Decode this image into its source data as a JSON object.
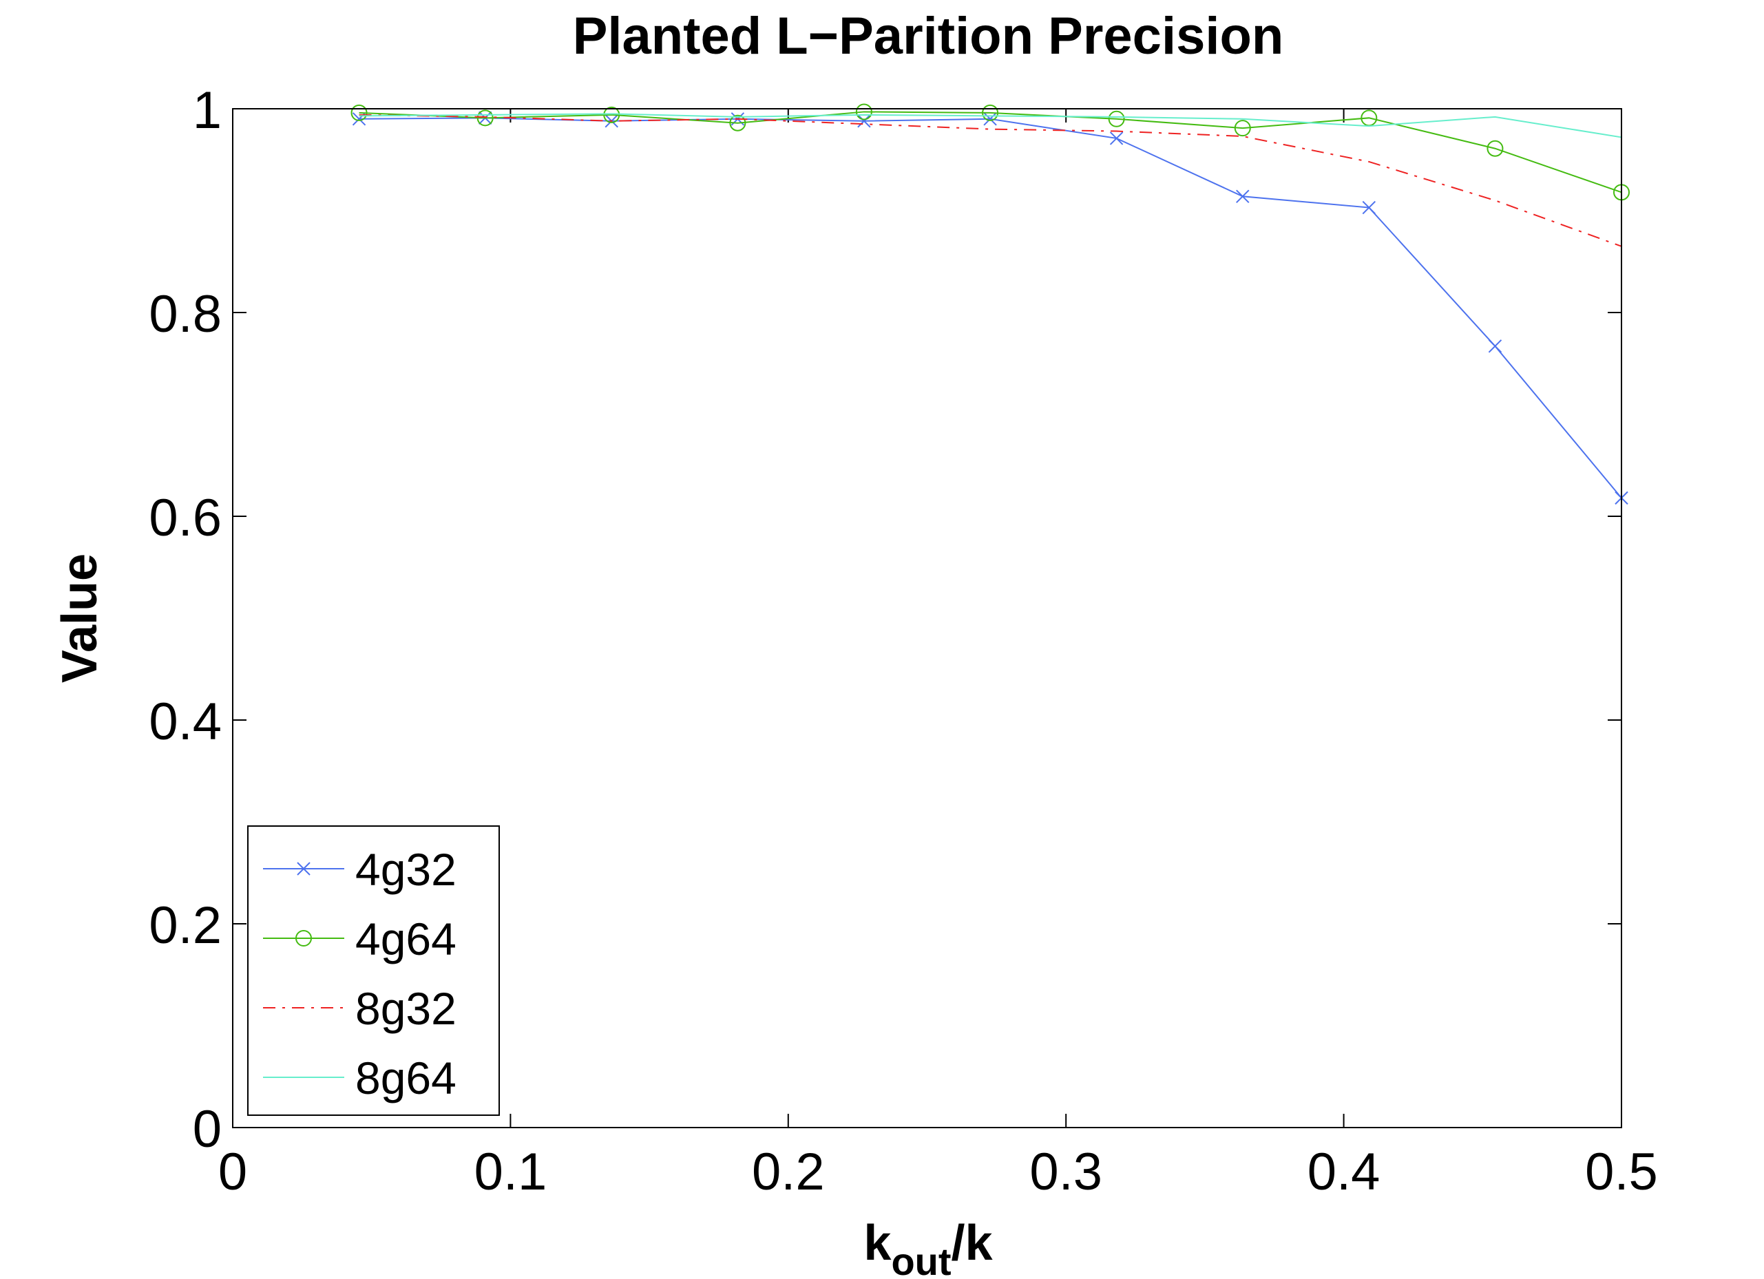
{
  "chart_data": {
    "type": "line",
    "title": "Planted L−Parition Precision",
    "xlabel": {
      "main": "k",
      "sub": "out",
      "suffix": "/k"
    },
    "ylabel": "Value",
    "xlim": [
      0,
      0.5
    ],
    "ylim": [
      0,
      1
    ],
    "xticks": [
      0,
      0.1,
      0.2,
      0.3,
      0.4,
      0.5
    ],
    "xtick_labels": [
      "0",
      "0.1",
      "0.2",
      "0.3",
      "0.4",
      "0.5"
    ],
    "yticks": [
      0,
      0.2,
      0.4,
      0.6,
      0.8,
      1
    ],
    "ytick_labels": [
      "0",
      "0.2",
      "0.4",
      "0.6",
      "0.8",
      "1"
    ],
    "grid": false,
    "legend_position": "bottom-left",
    "x": [
      0.0455,
      0.0909,
      0.1364,
      0.1818,
      0.2273,
      0.2727,
      0.3182,
      0.3636,
      0.4091,
      0.4545,
      0.5
    ],
    "series": [
      {
        "name": "4g32",
        "color": "#4d72ee",
        "marker": "x",
        "dash": "solid",
        "values": [
          0.99,
          0.991,
          0.988,
          0.99,
          0.988,
          0.99,
          0.971,
          0.914,
          0.903,
          0.767,
          0.618
        ]
      },
      {
        "name": "4g64",
        "color": "#44bb11",
        "marker": "o",
        "dash": "solid",
        "values": [
          0.996,
          0.991,
          0.994,
          0.986,
          0.997,
          0.996,
          0.99,
          0.981,
          0.991,
          0.961,
          0.918
        ]
      },
      {
        "name": "8g32",
        "color": "#ee2222",
        "marker": "none",
        "dash": "dashdot",
        "values": [
          0.994,
          0.992,
          0.988,
          0.99,
          0.985,
          0.98,
          0.978,
          0.973,
          0.948,
          0.91,
          0.865
        ]
      },
      {
        "name": "8g64",
        "color": "#66eecc",
        "marker": "none",
        "dash": "solid",
        "values": [
          0.993,
          0.994,
          0.995,
          0.992,
          0.994,
          0.993,
          0.992,
          0.99,
          0.983,
          0.992,
          0.972
        ]
      }
    ]
  }
}
